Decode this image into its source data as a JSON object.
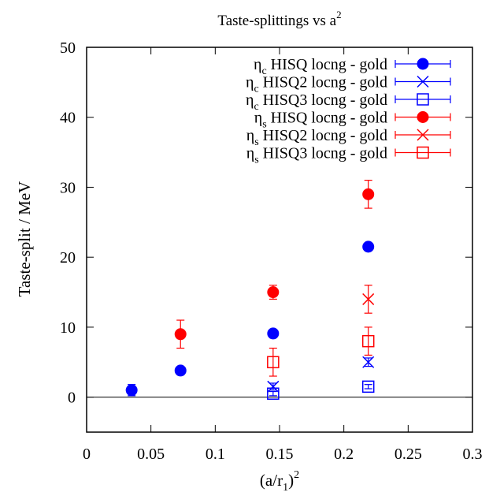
{
  "chart_data": {
    "type": "scatter",
    "title": "Taste-splittings vs a",
    "title_sup": "2",
    "xlabel": "(a/r",
    "xlabel_sub": "1",
    "xlabel_close": ")",
    "xlabel_sup": "2",
    "ylabel": "Taste-split / MeV",
    "xlim": [
      0,
      0.3
    ],
    "ylim": [
      -5,
      50
    ],
    "x_ticks": [
      0,
      0.05,
      0.1,
      0.15,
      0.2,
      0.25,
      0.3
    ],
    "x_tick_labels": [
      "0",
      "0.05",
      "0.1",
      "0.15",
      "0.2",
      "0.25",
      "0.3"
    ],
    "y_ticks": [
      0,
      10,
      20,
      30,
      40,
      50
    ],
    "y_tick_labels": [
      "0",
      "10",
      "20",
      "30",
      "40",
      "50"
    ],
    "zero_line": true,
    "grid": false,
    "legend_position": "top-right",
    "series": [
      {
        "name": "η",
        "name_sub": "c",
        "name_rest": " HISQ locng - gold",
        "color": "#0000ff",
        "marker": "filled-circle",
        "points": [
          {
            "x": 0.035,
            "y": 1.0,
            "err": 0.8
          },
          {
            "x": 0.073,
            "y": 3.8,
            "err": 0.4
          },
          {
            "x": 0.145,
            "y": 9.1,
            "err": 0.4
          },
          {
            "x": 0.219,
            "y": 21.5,
            "err": 0.4
          }
        ]
      },
      {
        "name": "η",
        "name_sub": "c",
        "name_rest": " HISQ2 locng - gold",
        "color": "#0000ff",
        "marker": "cross",
        "points": [
          {
            "x": 0.145,
            "y": 1.5,
            "err": 0.5
          },
          {
            "x": 0.219,
            "y": 5.0,
            "err": 0.6
          }
        ]
      },
      {
        "name": "η",
        "name_sub": "c",
        "name_rest": " HISQ3 locng - gold",
        "color": "#0000ff",
        "marker": "open-square",
        "points": [
          {
            "x": 0.145,
            "y": 0.5,
            "err": 0.3
          },
          {
            "x": 0.219,
            "y": 1.5,
            "err": 0.3
          }
        ]
      },
      {
        "name": "η",
        "name_sub": "s",
        "name_rest": " HISQ locng - gold",
        "color": "#ff0000",
        "marker": "filled-circle",
        "points": [
          {
            "x": 0.073,
            "y": 9.0,
            "err": 2.0
          },
          {
            "x": 0.145,
            "y": 15.0,
            "err": 1.0
          },
          {
            "x": 0.219,
            "y": 29.0,
            "err": 2.0
          }
        ]
      },
      {
        "name": "η",
        "name_sub": "s",
        "name_rest": " HISQ2 locng - gold",
        "color": "#ff0000",
        "marker": "cross",
        "points": [
          {
            "x": 0.219,
            "y": 14.0,
            "err": 2.0
          }
        ]
      },
      {
        "name": "η",
        "name_sub": "s",
        "name_rest": " HISQ3 locng - gold",
        "color": "#ff0000",
        "marker": "open-square",
        "points": [
          {
            "x": 0.145,
            "y": 5.0,
            "err": 2.0
          },
          {
            "x": 0.219,
            "y": 8.0,
            "err": 2.0
          }
        ]
      }
    ]
  }
}
